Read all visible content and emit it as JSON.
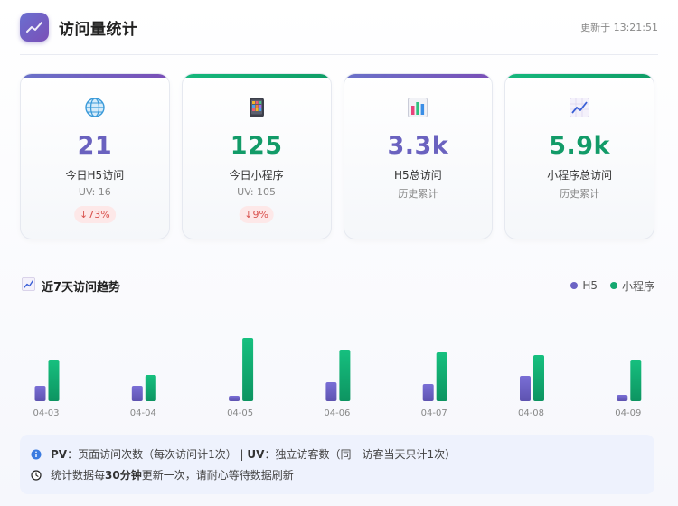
{
  "header": {
    "title": "访问量统计",
    "updated_prefix": "更新于",
    "updated_time": "13:21:51"
  },
  "colors": {
    "purple": "#6a62bf",
    "green": "#129b68",
    "red": "#d9534f"
  },
  "cards": [
    {
      "icon": "globe-icon",
      "value": "21",
      "label": "今日H5访问",
      "sub": "UV: 16",
      "badge": "↓73%",
      "theme": "purple"
    },
    {
      "icon": "mobile-phone-icon",
      "value": "125",
      "label": "今日小程序",
      "sub": "UV: 105",
      "badge": "↓9%",
      "theme": "green"
    },
    {
      "icon": "bar-chart-icon",
      "value": "3.3k",
      "label": "H5总访问",
      "sub": "历史累计",
      "theme": "purple"
    },
    {
      "icon": "trend-up-icon",
      "value": "5.9k",
      "label": "小程序总访问",
      "sub": "历史累计",
      "theme": "green"
    }
  ],
  "trend": {
    "title": "近7天访问趋势",
    "legend": {
      "h5": "H5",
      "mp": "小程序"
    }
  },
  "chart_data": {
    "type": "bar",
    "categories": [
      "04-03",
      "04-04",
      "04-05",
      "04-06",
      "04-07",
      "04-08",
      "04-09"
    ],
    "series": [
      {
        "name": "H5",
        "values": [
          17,
          17,
          6,
          21,
          19,
          28,
          7
        ],
        "color": "#6b63c4"
      },
      {
        "name": "小程序",
        "values": [
          46,
          29,
          70,
          57,
          54,
          51,
          46
        ],
        "color": "#14a870"
      }
    ],
    "ylim": [
      0,
      70
    ]
  },
  "notice": {
    "line1_pv": "PV",
    "line1_pv_desc": "：页面访问次数（每次访问计1次）",
    "line1_sep": " | ",
    "line1_uv": "UV",
    "line1_uv_desc": "：独立访客数（同一访客当天只计1次）",
    "line2_pre": "统计数据每",
    "line2_bold": "30分钟",
    "line2_post": "更新一次，请耐心等待数据刷新"
  }
}
